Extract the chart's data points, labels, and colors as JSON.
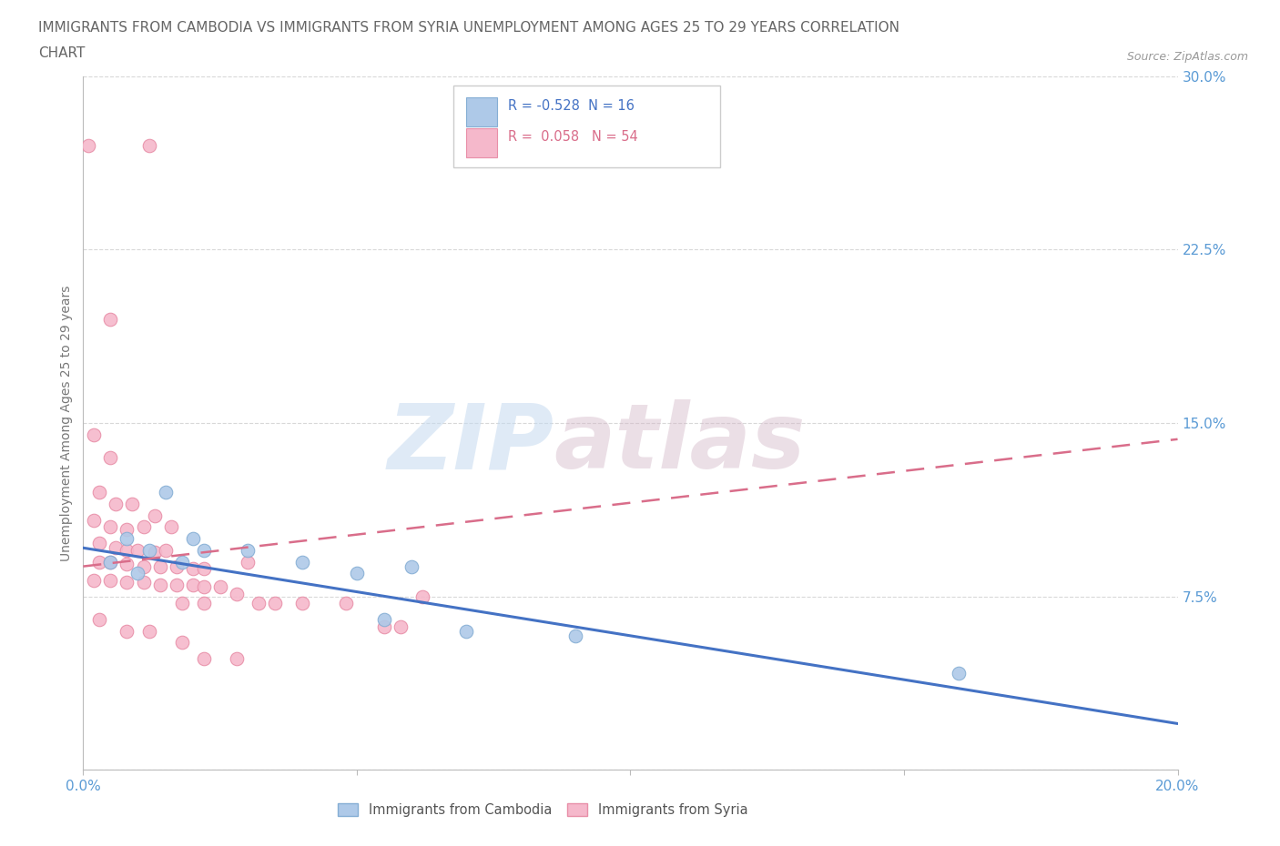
{
  "title_line1": "IMMIGRANTS FROM CAMBODIA VS IMMIGRANTS FROM SYRIA UNEMPLOYMENT AMONG AGES 25 TO 29 YEARS CORRELATION",
  "title_line2": "CHART",
  "source": "Source: ZipAtlas.com",
  "ylabel": "Unemployment Among Ages 25 to 29 years",
  "xlim": [
    0.0,
    0.2
  ],
  "ylim": [
    0.0,
    0.3
  ],
  "xticks": [
    0.0,
    0.05,
    0.1,
    0.15,
    0.2
  ],
  "yticks": [
    0.0,
    0.075,
    0.15,
    0.225,
    0.3
  ],
  "ytick_labels": [
    "",
    "7.5%",
    "15.0%",
    "22.5%",
    "30.0%"
  ],
  "xtick_labels": [
    "0.0%",
    "",
    "",
    "",
    "20.0%"
  ],
  "background_color": "#ffffff",
  "grid_color": "#d8d8d8",
  "cambodia_color": "#aec9e8",
  "cambodia_edge_color": "#85aed4",
  "syria_color": "#f5b8cb",
  "syria_edge_color": "#e88fa8",
  "cambodia_line_color": "#4472c4",
  "syria_line_color": "#d96d8a",
  "R_cambodia": -0.528,
  "N_cambodia": 16,
  "R_syria": 0.058,
  "N_syria": 54,
  "legend_label_cambodia": "Immigrants from Cambodia",
  "legend_label_syria": "Immigrants from Syria",
  "watermark_zip": "ZIP",
  "watermark_atlas": "atlas",
  "cambodia_points": [
    [
      0.005,
      0.09
    ],
    [
      0.008,
      0.1
    ],
    [
      0.01,
      0.085
    ],
    [
      0.012,
      0.095
    ],
    [
      0.015,
      0.12
    ],
    [
      0.018,
      0.09
    ],
    [
      0.02,
      0.1
    ],
    [
      0.022,
      0.095
    ],
    [
      0.03,
      0.095
    ],
    [
      0.04,
      0.09
    ],
    [
      0.05,
      0.085
    ],
    [
      0.055,
      0.065
    ],
    [
      0.06,
      0.088
    ],
    [
      0.07,
      0.06
    ],
    [
      0.09,
      0.058
    ],
    [
      0.16,
      0.042
    ]
  ],
  "syria_points": [
    [
      0.001,
      0.27
    ],
    [
      0.012,
      0.27
    ],
    [
      0.005,
      0.195
    ],
    [
      0.002,
      0.145
    ],
    [
      0.005,
      0.135
    ],
    [
      0.003,
      0.12
    ],
    [
      0.006,
      0.115
    ],
    [
      0.009,
      0.115
    ],
    [
      0.002,
      0.108
    ],
    [
      0.005,
      0.105
    ],
    [
      0.008,
      0.104
    ],
    [
      0.011,
      0.105
    ],
    [
      0.013,
      0.11
    ],
    [
      0.016,
      0.105
    ],
    [
      0.003,
      0.098
    ],
    [
      0.006,
      0.096
    ],
    [
      0.008,
      0.095
    ],
    [
      0.01,
      0.095
    ],
    [
      0.013,
      0.094
    ],
    [
      0.015,
      0.095
    ],
    [
      0.003,
      0.09
    ],
    [
      0.005,
      0.09
    ],
    [
      0.008,
      0.089
    ],
    [
      0.011,
      0.088
    ],
    [
      0.014,
      0.088
    ],
    [
      0.017,
      0.088
    ],
    [
      0.02,
      0.087
    ],
    [
      0.022,
      0.087
    ],
    [
      0.002,
      0.082
    ],
    [
      0.005,
      0.082
    ],
    [
      0.008,
      0.081
    ],
    [
      0.011,
      0.081
    ],
    [
      0.014,
      0.08
    ],
    [
      0.017,
      0.08
    ],
    [
      0.02,
      0.08
    ],
    [
      0.022,
      0.079
    ],
    [
      0.025,
      0.079
    ],
    [
      0.018,
      0.072
    ],
    [
      0.022,
      0.072
    ],
    [
      0.028,
      0.076
    ],
    [
      0.03,
      0.09
    ],
    [
      0.032,
      0.072
    ],
    [
      0.035,
      0.072
    ],
    [
      0.04,
      0.072
    ],
    [
      0.048,
      0.072
    ],
    [
      0.055,
      0.062
    ],
    [
      0.058,
      0.062
    ],
    [
      0.062,
      0.075
    ],
    [
      0.003,
      0.065
    ],
    [
      0.008,
      0.06
    ],
    [
      0.012,
      0.06
    ],
    [
      0.018,
      0.055
    ],
    [
      0.022,
      0.048
    ],
    [
      0.028,
      0.048
    ]
  ],
  "camb_line_x0": 0.0,
  "camb_line_y0": 0.096,
  "camb_line_x1": 0.2,
  "camb_line_y1": 0.02,
  "syria_line_x0": 0.0,
  "syria_line_y0": 0.088,
  "syria_line_x1": 0.2,
  "syria_line_y1": 0.143
}
